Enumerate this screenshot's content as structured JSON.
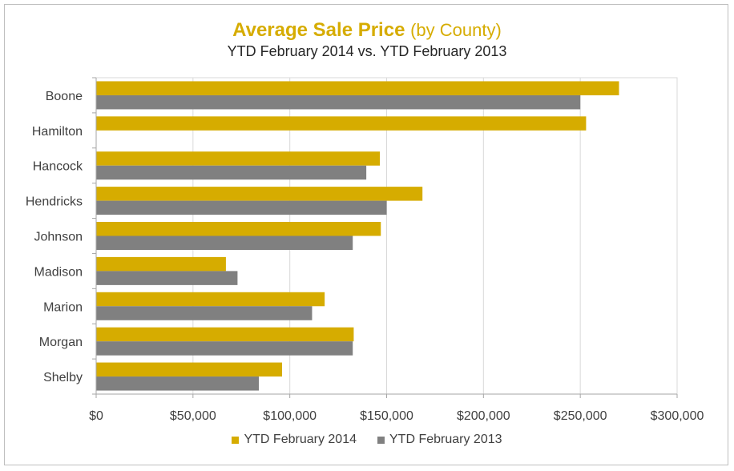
{
  "chart_data": {
    "type": "bar",
    "orientation": "horizontal",
    "title": "Average Sale Price",
    "title_suffix": "(by County)",
    "subtitle": "YTD February 2014 vs. YTD February 2013",
    "categories": [
      "Boone",
      "Hamilton",
      "Hancock",
      "Hendricks",
      "Johnson",
      "Madison",
      "Marion",
      "Morgan",
      "Shelby"
    ],
    "series": [
      {
        "name": "YTD February 2014",
        "color": "#d6ac00",
        "values": [
          270000,
          253000,
          146500,
          168500,
          147000,
          67000,
          118000,
          133000,
          96000
        ]
      },
      {
        "name": "YTD February 2013",
        "color": "#808080",
        "values": [
          250000,
          0,
          139500,
          150000,
          132500,
          73000,
          111500,
          132500,
          84000
        ]
      }
    ],
    "xlim": [
      0,
      300000
    ],
    "xticks": [
      0,
      50000,
      100000,
      150000,
      200000,
      250000,
      300000
    ],
    "xtick_labels": [
      "$0",
      "$50,000",
      "$100,000",
      "$150,000",
      "$200,000",
      "$250,000",
      "$300,000"
    ],
    "grid": "vertical",
    "legend_position": "bottom"
  }
}
